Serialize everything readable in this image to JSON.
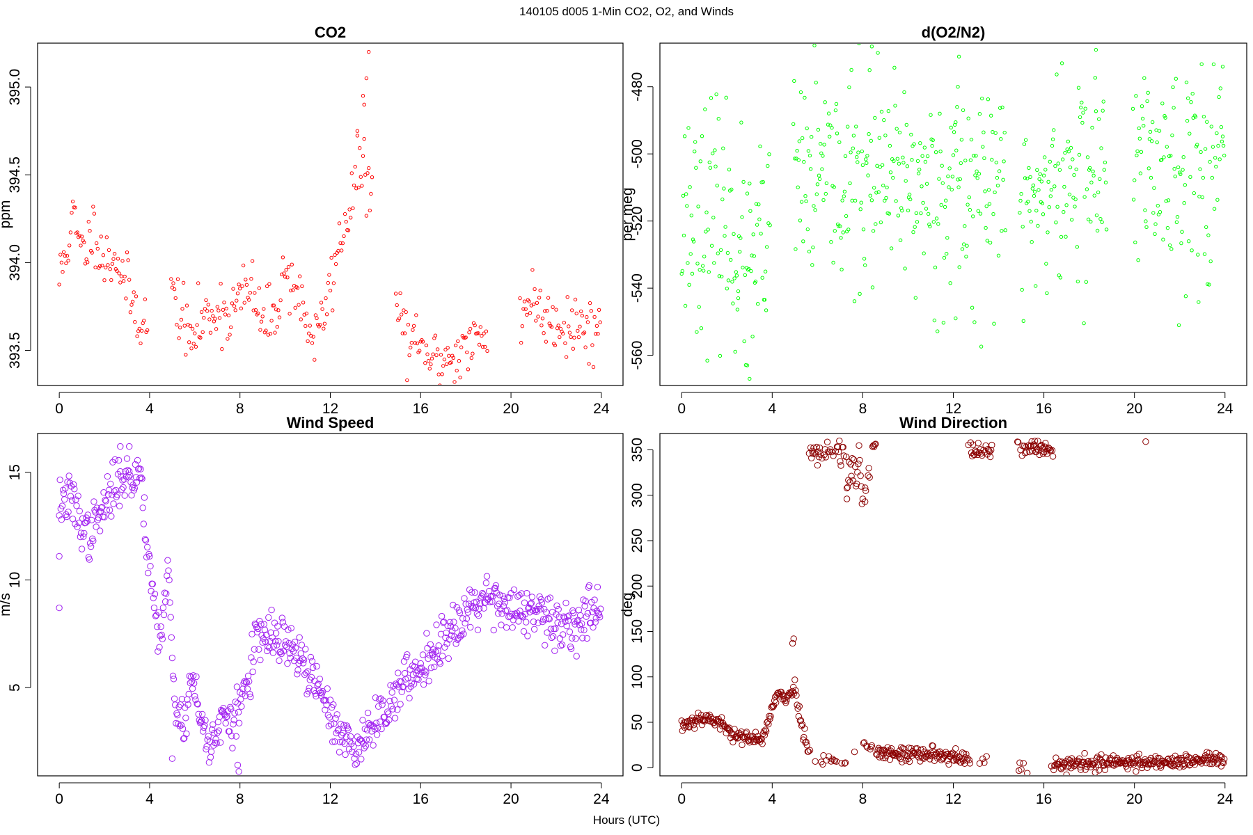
{
  "figure": {
    "title": "140105   d005   1-Min CO2, O2, and Winds",
    "xlabel": "Hours (UTC)"
  },
  "chart_data": [
    {
      "id": "co2",
      "type": "scatter",
      "title": "CO2",
      "xlabel": "",
      "ylabel": "ppm",
      "xlim": [
        -0.96,
        24.96
      ],
      "ylim": [
        393.3,
        395.25
      ],
      "x_ticks": [
        0,
        4,
        8,
        12,
        16,
        20,
        24
      ],
      "x_tick_labels": [
        "0",
        "4",
        "8",
        "12",
        "16",
        "20",
        "24"
      ],
      "y_ticks": [
        393.5,
        394.0,
        394.5,
        395.0
      ],
      "y_tick_labels": [
        "393.5",
        "394.0",
        "394.5",
        "395.0"
      ],
      "grid": false,
      "marker": "open-circle",
      "color": "#ff0000",
      "point_radius_class": "small",
      "gaps": [
        [
          3.9,
          4.9
        ],
        [
          13.9,
          14.9
        ],
        [
          19.0,
          20.4
        ]
      ],
      "noise": 0.09,
      "seed": 11,
      "step_minutes": 3,
      "outliers": [
        [
          13.7,
          395.2
        ],
        [
          13.6,
          395.05
        ],
        [
          13.5,
          394.9
        ],
        [
          13.2,
          394.75
        ],
        [
          13.45,
          394.95
        ]
      ],
      "trend": [
        [
          0,
          393.9
        ],
        [
          0.6,
          394.25
        ],
        [
          1.0,
          394.05
        ],
        [
          1.6,
          394.2
        ],
        [
          2.0,
          394.0
        ],
        [
          2.5,
          394.05
        ],
        [
          3.0,
          393.85
        ],
        [
          3.5,
          393.7
        ],
        [
          3.9,
          393.65
        ],
        [
          4.9,
          393.85
        ],
        [
          5.3,
          393.75
        ],
        [
          5.8,
          393.55
        ],
        [
          6.2,
          393.65
        ],
        [
          7.0,
          393.75
        ],
        [
          7.5,
          393.7
        ],
        [
          8.0,
          393.8
        ],
        [
          8.5,
          393.85
        ],
        [
          9.0,
          393.65
        ],
        [
          9.5,
          393.7
        ],
        [
          10.0,
          393.95
        ],
        [
          10.5,
          393.85
        ],
        [
          11.0,
          393.65
        ],
        [
          11.4,
          393.55
        ],
        [
          11.8,
          393.75
        ],
        [
          12.3,
          394.05
        ],
        [
          12.8,
          394.3
        ],
        [
          13.3,
          394.55
        ],
        [
          13.9,
          394.4
        ],
        [
          14.9,
          393.75
        ],
        [
          15.5,
          393.55
        ],
        [
          16.3,
          393.45
        ],
        [
          17.0,
          393.45
        ],
        [
          17.8,
          393.5
        ],
        [
          18.5,
          393.55
        ],
        [
          19.0,
          393.6
        ],
        [
          20.4,
          393.7
        ],
        [
          20.9,
          393.8
        ],
        [
          21.5,
          393.7
        ],
        [
          22.5,
          393.65
        ],
        [
          23.5,
          393.63
        ],
        [
          24.0,
          393.62
        ]
      ]
    },
    {
      "id": "o2",
      "type": "scatter",
      "title": "d(O2/N2)",
      "xlabel": "",
      "ylabel": "per meg",
      "xlim": [
        -0.96,
        24.96
      ],
      "ylim": [
        -569,
        -467
      ],
      "x_ticks": [
        0,
        4,
        8,
        12,
        16,
        20,
        24
      ],
      "x_tick_labels": [
        "0",
        "4",
        "8",
        "12",
        "16",
        "20",
        "24"
      ],
      "y_ticks": [
        -560,
        -540,
        -520,
        -500,
        -480
      ],
      "y_tick_labels": [
        "-560",
        "-540",
        "-520",
        "-500",
        "-480"
      ],
      "grid": false,
      "marker": "open-circle",
      "color": "#00ff00",
      "point_radius_class": "small",
      "gaps": [
        [
          3.9,
          4.9
        ],
        [
          14.3,
          14.9
        ],
        [
          18.8,
          19.9
        ]
      ],
      "noise": 16,
      "seed": 23,
      "step_minutes": 2,
      "outliers": [
        [
          8.4,
          -468
        ],
        [
          12.25,
          -471
        ],
        [
          12.2,
          -480
        ],
        [
          18.3,
          -469
        ],
        [
          3.0,
          -567
        ],
        [
          2.9,
          -563
        ],
        [
          2.5,
          -543
        ],
        [
          12.1,
          -549
        ],
        [
          23.9,
          -474
        ]
      ],
      "trend": [
        [
          0,
          -518
        ],
        [
          1.0,
          -518
        ],
        [
          2.0,
          -520
        ],
        [
          2.5,
          -528
        ],
        [
          3.0,
          -538
        ],
        [
          3.4,
          -532
        ],
        [
          3.9,
          -524
        ],
        [
          4.9,
          -508
        ],
        [
          6.0,
          -508
        ],
        [
          8.0,
          -508
        ],
        [
          10.0,
          -510
        ],
        [
          12.0,
          -510
        ],
        [
          14.3,
          -510
        ],
        [
          14.9,
          -518
        ],
        [
          15.5,
          -514
        ],
        [
          16.5,
          -510
        ],
        [
          17.5,
          -507
        ],
        [
          18.8,
          -504
        ],
        [
          19.9,
          -503
        ],
        [
          21.0,
          -504
        ],
        [
          22.5,
          -504
        ],
        [
          24.0,
          -502
        ]
      ]
    },
    {
      "id": "wind-speed",
      "type": "scatter",
      "title": "Wind Speed",
      "xlabel": "",
      "ylabel": "m/s",
      "xlim": [
        -0.96,
        24.96
      ],
      "ylim": [
        0.9,
        16.8
      ],
      "x_ticks": [
        0,
        4,
        8,
        12,
        16,
        20,
        24
      ],
      "x_tick_labels": [
        "0",
        "4",
        "8",
        "12",
        "16",
        "20",
        "24"
      ],
      "y_ticks": [
        5,
        10,
        15
      ],
      "y_tick_labels": [
        "5",
        "10",
        "15"
      ],
      "grid": false,
      "marker": "open-circle",
      "color": "#a020f0",
      "point_radius_class": "large",
      "gaps": [],
      "noise": 0.55,
      "seed": 37,
      "step_minutes": 2,
      "outliers": [
        [
          0.0,
          8.7
        ],
        [
          0.0,
          11.1
        ],
        [
          2.7,
          16.2
        ],
        [
          3.1,
          16.2
        ],
        [
          7.95,
          1.1
        ],
        [
          7.9,
          1.4
        ],
        [
          5.0,
          1.7
        ]
      ],
      "trend": [
        [
          0,
          13.6
        ],
        [
          0.5,
          13.8
        ],
        [
          1.0,
          12.6
        ],
        [
          1.3,
          12.0
        ],
        [
          1.8,
          13.0
        ],
        [
          2.3,
          14.0
        ],
        [
          2.8,
          15.0
        ],
        [
          3.2,
          14.5
        ],
        [
          3.6,
          15.2
        ],
        [
          3.9,
          11.5
        ],
        [
          4.2,
          9.0
        ],
        [
          4.5,
          7.0
        ],
        [
          4.8,
          11.0
        ],
        [
          5.1,
          4.0
        ],
        [
          5.5,
          3.5
        ],
        [
          5.9,
          5.5
        ],
        [
          6.3,
          3.2
        ],
        [
          6.7,
          2.4
        ],
        [
          7.2,
          3.5
        ],
        [
          7.6,
          3.2
        ],
        [
          8.0,
          4.2
        ],
        [
          8.4,
          5.5
        ],
        [
          8.7,
          7.2
        ],
        [
          9.5,
          7.3
        ],
        [
          10.0,
          7.0
        ],
        [
          10.5,
          6.5
        ],
        [
          11.0,
          5.8
        ],
        [
          11.5,
          4.8
        ],
        [
          12.0,
          3.8
        ],
        [
          12.5,
          2.8
        ],
        [
          13.0,
          2.0
        ],
        [
          13.5,
          2.6
        ],
        [
          14.0,
          3.5
        ],
        [
          15.0,
          4.8
        ],
        [
          16.0,
          6.0
        ],
        [
          17.0,
          7.3
        ],
        [
          18.0,
          8.6
        ],
        [
          18.5,
          8.9
        ],
        [
          19.0,
          9.4
        ],
        [
          20.0,
          8.6
        ],
        [
          21.0,
          8.4
        ],
        [
          22.0,
          7.8
        ],
        [
          23.0,
          8.1
        ],
        [
          24.0,
          8.9
        ]
      ]
    },
    {
      "id": "wind-direction",
      "type": "scatter",
      "title": "Wind Direction",
      "xlabel": "",
      "ylabel": "deg",
      "xlim": [
        -0.96,
        24.96
      ],
      "ylim": [
        -9,
        368
      ],
      "x_ticks": [
        0,
        4,
        8,
        12,
        16,
        20,
        24
      ],
      "x_tick_labels": [
        "0",
        "4",
        "8",
        "12",
        "16",
        "20",
        "24"
      ],
      "y_ticks": [
        0,
        50,
        100,
        150,
        200,
        250,
        300,
        350
      ],
      "y_tick_labels": [
        "0",
        "50",
        "100",
        "150",
        "200",
        "250",
        "300",
        "350"
      ],
      "grid": false,
      "marker": "open-circle",
      "color": "#8b0000",
      "point_radius_class": "large",
      "gaps": [
        [
          13.7,
          14.8
        ]
      ],
      "noise": 4,
      "seed": 53,
      "step_minutes": 2,
      "outliers": [
        [
          4.95,
          142
        ],
        [
          4.9,
          137
        ],
        [
          20.5,
          359
        ],
        [
          8.1,
          293
        ],
        [
          7.3,
          296
        ]
      ],
      "trend": [
        [
          0,
          46
        ],
        [
          0.5,
          52
        ],
        [
          1.0,
          56
        ],
        [
          1.5,
          52
        ],
        [
          2.0,
          42
        ],
        [
          2.5,
          36
        ],
        [
          3.0,
          30
        ],
        [
          3.5,
          32
        ],
        [
          3.8,
          48
        ],
        [
          4.2,
          80
        ],
        [
          4.6,
          75
        ],
        [
          5.0,
          90
        ],
        [
          5.3,
          45
        ],
        [
          5.6,
          18
        ],
        [
          6.0,
          6
        ],
        [
          6.5,
          10
        ],
        [
          7.0,
          6
        ],
        [
          8.0,
          25
        ],
        [
          8.5,
          20
        ],
        [
          9.0,
          16
        ],
        [
          10.0,
          16
        ],
        [
          11.0,
          15
        ],
        [
          12.0,
          12
        ],
        [
          12.6,
          8
        ],
        [
          13.7,
          6
        ],
        [
          14.8,
          1
        ],
        [
          15.5,
          2
        ],
        [
          16.5,
          4
        ],
        [
          18.0,
          5
        ],
        [
          20.0,
          6
        ],
        [
          22.0,
          7
        ],
        [
          23.0,
          8
        ],
        [
          24.0,
          9
        ]
      ],
      "high_clusters": [
        {
          "x_start": 5.6,
          "x_end": 7.2,
          "center": 348,
          "noise": 6
        },
        {
          "x_start": 7.0,
          "x_end": 8.3,
          "center": 325,
          "noise": 14
        },
        {
          "x_start": 8.4,
          "x_end": 8.6,
          "center": 355,
          "noise": 3
        },
        {
          "x_start": 12.6,
          "x_end": 14.0,
          "center": 348,
          "noise": 6
        },
        {
          "x_start": 14.0,
          "x_end": 16.4,
          "center": 352,
          "noise": 5
        }
      ]
    }
  ]
}
